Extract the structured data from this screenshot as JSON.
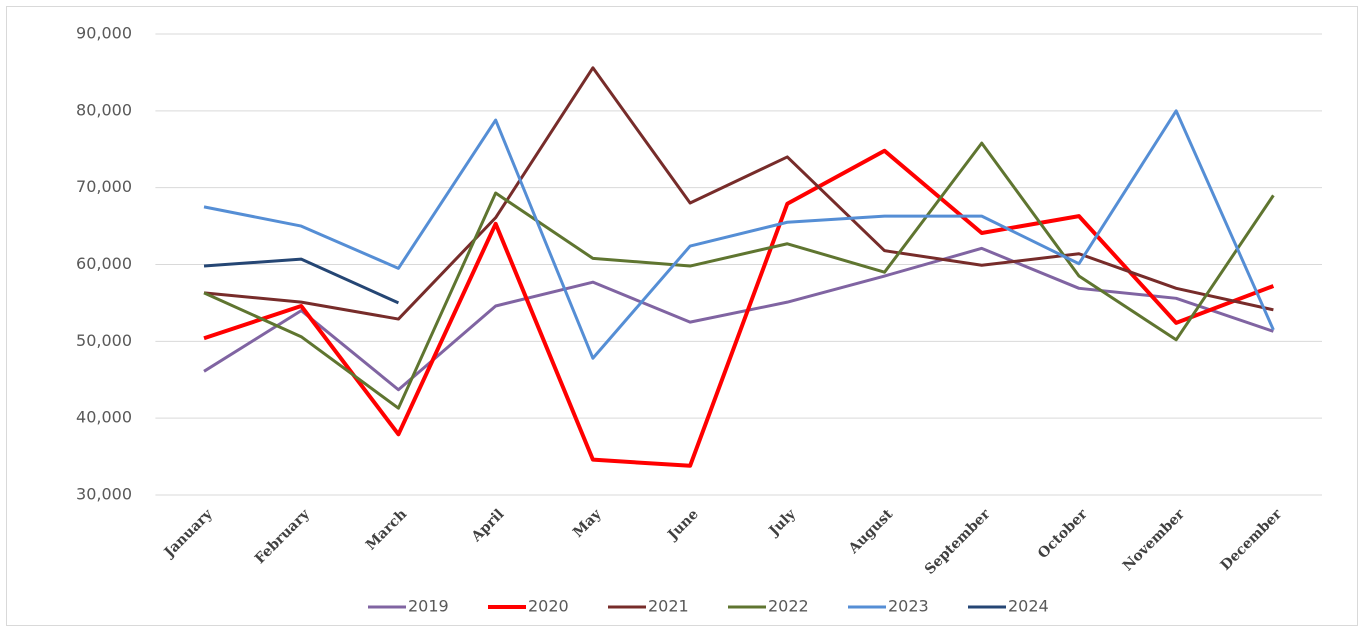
{
  "chart_data": {
    "type": "line",
    "categories": [
      "January",
      "February",
      "March",
      "April",
      "May",
      "June",
      "July",
      "August",
      "September",
      "October",
      "November",
      "December"
    ],
    "ylim": [
      30000,
      90000
    ],
    "yticks": [
      {
        "value": 30000,
        "label": "30,000"
      },
      {
        "value": 40000,
        "label": "40,000"
      },
      {
        "value": 50000,
        "label": "50,000"
      },
      {
        "value": 60000,
        "label": "60,000"
      },
      {
        "value": 70000,
        "label": "70,000"
      },
      {
        "value": 80000,
        "label": "80,000"
      },
      {
        "value": 90000,
        "label": "90,000"
      }
    ],
    "grid": true,
    "legend": "bottom",
    "series": [
      {
        "name": "2019",
        "color": "#8064a2",
        "values": [
          46100,
          54000,
          43700,
          54600,
          57700,
          52500,
          55100,
          58500,
          62100,
          56900,
          55600,
          51300
        ]
      },
      {
        "name": "2020",
        "color": "#ff0000",
        "values": [
          50400,
          54600,
          37900,
          65300,
          34600,
          33800,
          67900,
          74800,
          64100,
          66300,
          52400,
          57200
        ]
      },
      {
        "name": "2021",
        "color": "#772c2a",
        "values": [
          56300,
          55100,
          52900,
          66100,
          85600,
          68000,
          74000,
          61800,
          59900,
          61400,
          56900,
          54100
        ]
      },
      {
        "name": "2022",
        "color": "#5f7530",
        "values": [
          56300,
          50600,
          41300,
          69300,
          60800,
          59800,
          62700,
          59000,
          75800,
          58500,
          50200,
          69000
        ]
      },
      {
        "name": "2023",
        "color": "#558ed5",
        "values": [
          67500,
          65000,
          59500,
          78800,
          47800,
          62400,
          65500,
          66300,
          66300,
          60100,
          80000,
          51500
        ]
      },
      {
        "name": "2024",
        "color": "#254674",
        "values": [
          59800,
          60700,
          55000,
          null,
          null,
          null,
          null,
          null,
          null,
          null,
          null,
          null
        ]
      }
    ]
  }
}
